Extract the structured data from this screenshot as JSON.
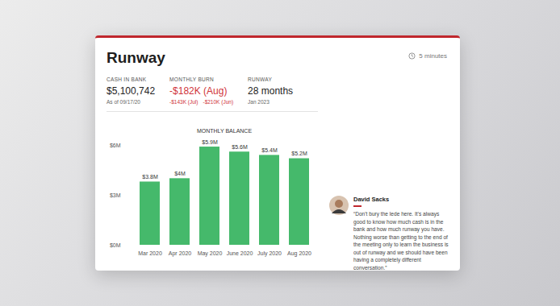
{
  "header": {
    "title": "Runway",
    "read_time": "5 minutes"
  },
  "stats": [
    {
      "label": "CASH IN BANK",
      "value": "$5,100,742",
      "note": "As of 09/17/20"
    },
    {
      "label": "MONTHLY BURN",
      "value": "-$182K (Aug)",
      "details": [
        "-$143K (Jul)",
        "-$210K (Jun)"
      ]
    },
    {
      "label": "RUNWAY",
      "value": "28 months",
      "note": "Jan 2023"
    }
  ],
  "chart_data": {
    "type": "bar",
    "title": "MONTHLY BALANCE",
    "categories": [
      "Mar 2020",
      "Apr 2020",
      "May 2020",
      "June 2020",
      "July 2020",
      "Aug 2020"
    ],
    "values": [
      3.8,
      4,
      5.9,
      5.6,
      5.4,
      5.2
    ],
    "value_labels": [
      "$3.8M",
      "$4M",
      "$5.9M",
      "$5.6M",
      "$5.4M",
      "$5.2M"
    ],
    "color": "#45b96b",
    "ylim": [
      0,
      6
    ],
    "yticks": [
      {
        "value": 0,
        "label": "$0M"
      },
      {
        "value": 3,
        "label": "$3M"
      },
      {
        "value": 6,
        "label": "$6M"
      }
    ],
    "grid": false,
    "data_labels": true
  },
  "quote": {
    "author": "David Sacks",
    "text": "“Don't bury the lede here. It's always good to know how much cash is in the bank and how much runway you have. Nothing worse than getting to the end of the meeting only to learn the business is out of runway and we should have been having a completely different conversation.”"
  }
}
